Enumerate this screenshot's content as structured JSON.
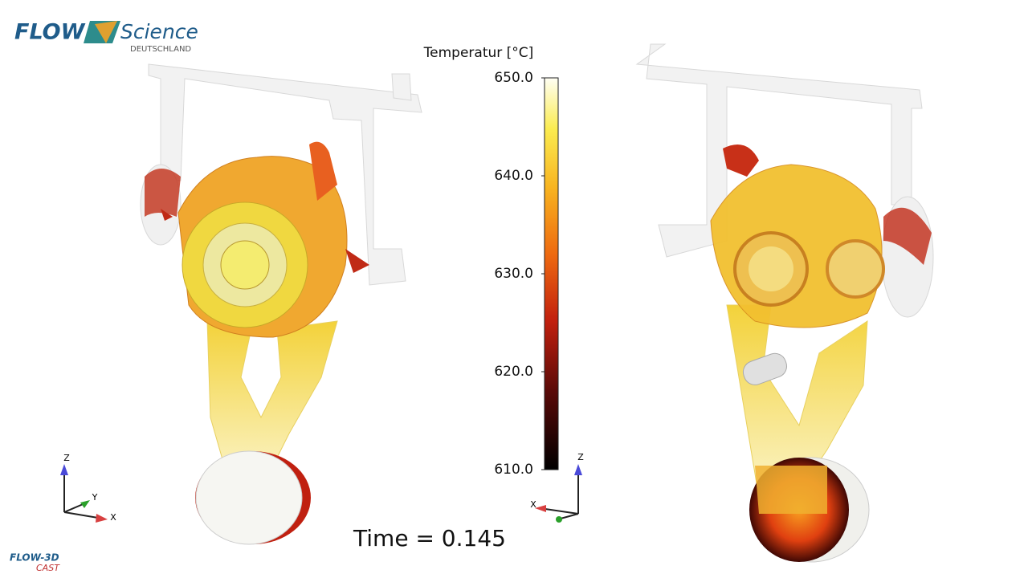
{
  "logo": {
    "word1": "FLOW",
    "word2": "Science",
    "sub": "DEUTSCHLAND"
  },
  "colorbar": {
    "title": "Temperatur [°C]",
    "range": [
      610,
      650
    ],
    "ticks": [
      {
        "value": 650,
        "label": "650.0"
      },
      {
        "value": 640,
        "label": "640.0"
      },
      {
        "value": 630,
        "label": "630.0"
      },
      {
        "value": 620,
        "label": "620.0"
      },
      {
        "value": 610,
        "label": "610.0"
      }
    ]
  },
  "time": "Time = 0.145",
  "left_axes": {
    "z": "Z",
    "y": "Y",
    "x": "X"
  },
  "right_axes": {
    "z": "Z",
    "x": "X"
  },
  "footer": {
    "product": "FLOW-3D",
    "module": "CAST"
  }
}
